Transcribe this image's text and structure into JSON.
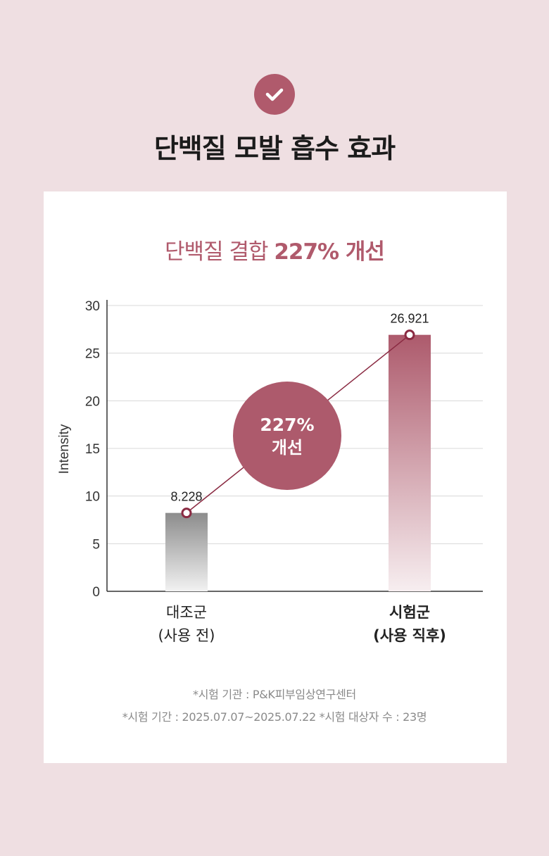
{
  "header": {
    "icon": "check-icon",
    "title": "단백질 모발 흡수 효과"
  },
  "headline": {
    "prefix": "단백질 결합 ",
    "emphasis": "227% 개선"
  },
  "chart_data": {
    "type": "bar",
    "categories": [
      "대조군\n(사용 전)",
      "시험군\n(사용 직후)"
    ],
    "category_lines": [
      [
        "대조군",
        "(사용 전)"
      ],
      [
        "시험군",
        "(사용 직후)"
      ]
    ],
    "values": [
      8.228,
      26.921
    ],
    "value_labels": [
      "8.228",
      "26.921"
    ],
    "ylabel": "Intensity",
    "ylim": [
      0,
      30
    ],
    "yticks": [
      0,
      5,
      10,
      15,
      20,
      25,
      30
    ],
    "grid": true,
    "annotation": {
      "line1": "227%",
      "line2": "개선"
    },
    "colors": {
      "control_bar": "#8c8c8c",
      "test_bar": "#ad5a6c",
      "line": "#8a2a42",
      "bubble": "#ad5a6c",
      "grid": "#d8d8d8"
    }
  },
  "notes": {
    "line1": "*시험 기관 : P&K피부임상연구센터",
    "line2": "*시험 기간 : 2025.07.07~2025.07.22 *시험 대상자 수 : 23명"
  }
}
